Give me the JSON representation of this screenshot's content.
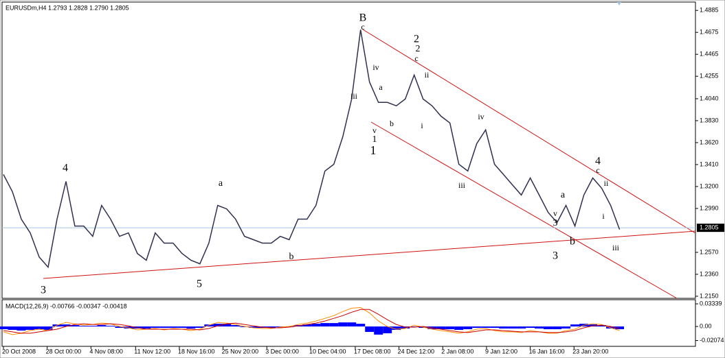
{
  "chart_data": [
    {
      "type": "line",
      "header": "EURUSDm,H4  1.2793 1.2828 1.2790 1.2805",
      "color": "#2f2f4f",
      "x": [
        0,
        1,
        2,
        3,
        4,
        5,
        6,
        7,
        8,
        9,
        10,
        11,
        12,
        13,
        14,
        15,
        16,
        17,
        18,
        19,
        20,
        21,
        22,
        23,
        24,
        25,
        26,
        27,
        28,
        29,
        30,
        31,
        32,
        33,
        34,
        35,
        36,
        37,
        38,
        39,
        40,
        41,
        42,
        43,
        44,
        45,
        46,
        47,
        48,
        49,
        50,
        51,
        52,
        53,
        54,
        55,
        56,
        57,
        58,
        59,
        60,
        61,
        62,
        63,
        64,
        65,
        66,
        67,
        68,
        69
      ],
      "values": [
        1.3315,
        1.3151,
        1.2888,
        1.2756,
        1.2526,
        1.2428,
        1.2888,
        1.3249,
        1.2822,
        1.2822,
        1.2723,
        1.3019,
        1.2888,
        1.2723,
        1.2756,
        1.2559,
        1.2494,
        1.2756,
        1.2658,
        1.2658,
        1.2559,
        1.2494,
        1.2461,
        1.2658,
        1.3019,
        1.2986,
        1.2888,
        1.2723,
        1.2691,
        1.2658,
        1.2658,
        1.2723,
        1.2691,
        1.2888,
        1.2888,
        1.3019,
        1.3348,
        1.3413,
        1.3676,
        1.4037,
        1.47,
        1.42,
        1.4005,
        1.4005,
        1.3972,
        1.4037,
        1.4267,
        1.4037,
        1.3972,
        1.3873,
        1.3808,
        1.3413,
        1.3348,
        1.361,
        1.3742,
        1.3413,
        1.3315,
        1.3216,
        1.3118,
        1.3282,
        1.3118,
        1.2953,
        1.2855,
        1.3019,
        1.2822,
        1.3118,
        1.3282,
        1.3183,
        1.3019,
        1.2789
      ],
      "xlim": [
        0,
        77.5
      ],
      "ylim": [
        1.213,
        1.4965
      ],
      "yticks": [
        1.4885,
        1.4675,
        1.4465,
        1.4255,
        {
          "value": 1.404,
          "label": "1.4040"
        },
        {
          "value": 1.383,
          "label": "1.3830"
        },
        {
          "value": 1.362,
          "label": "1.3620"
        },
        {
          "value": 1.341,
          "label": "1.3410"
        },
        {
          "value": 1.32,
          "label": "1.3200"
        },
        {
          "value": 1.299,
          "label": "1.2990"
        },
        {
          "value": 1.257,
          "label": "1.2570"
        },
        {
          "value": 1.236,
          "label": "1.2360"
        },
        {
          "value": 1.215,
          "label": "1.2150"
        }
      ],
      "last_price": {
        "value": 1.2805,
        "label": "1.2805"
      },
      "xticks": [
        {
          "value": 0,
          "label": "20 Oct 2008"
        },
        {
          "value": 4.9,
          "label": "28 Oct 00:00"
        },
        {
          "value": 9.8,
          "label": "4 Nov 08:00"
        },
        {
          "value": 14.8,
          "label": "11 Nov 12:00"
        },
        {
          "value": 19.7,
          "label": "18 Nov 16:00"
        },
        {
          "value": 24.6,
          "label": "25 Nov 20:00"
        },
        {
          "value": 29.5,
          "label": "3 Dec 00:00"
        },
        {
          "value": 34.4,
          "label": "10 Dec 04:00"
        },
        {
          "value": 39.4,
          "label": "17 Dec 08:00"
        },
        {
          "value": 44.3,
          "label": "24 Dec 12:00"
        },
        {
          "value": 49.2,
          "label": "2 Jan 08:00"
        },
        {
          "value": 54.1,
          "label": "9 Jan 12:00"
        },
        {
          "value": 59,
          "label": "16 Jan 16:00"
        },
        {
          "value": 63.9,
          "label": "23 Jan 20:00"
        }
      ],
      "annotations": [
        "B",
        "c",
        "2",
        "2",
        "c",
        "iv",
        "a",
        "ii",
        "iii",
        "i",
        "b",
        "v",
        "1",
        "1",
        "iv",
        "iii",
        "a",
        "4",
        "3",
        "5",
        "b",
        "a",
        "v",
        "3",
        "3",
        "b",
        "4",
        "c",
        "ii",
        "i",
        "iii"
      ]
    },
    {
      "type": "macd",
      "title": "MACD(12,26,9) -0.00766 -0.00347 -0.00418",
      "ylim": [
        -0.0293,
        0.0395
      ],
      "yticks": [
        0.03339,
        {
          "value": 0,
          "label": "0.00"
        },
        -0.02074
      ],
      "series": [
        {
          "type": "bar",
          "color": "#0000ff",
          "values": [
            -0.004,
            -0.005,
            -0.006,
            -0.005,
            -0.004,
            -0.005,
            0.003,
            0.003,
            0.002,
            0.001,
            0.001,
            0.002,
            0.001,
            -0.002,
            -0.003,
            -0.003,
            -0.003,
            -0.002,
            -0.002,
            -0.002,
            -0.002,
            -0.003,
            -0.002,
            0.003,
            0.004,
            0.004,
            0.002,
            -0.001,
            -0.002,
            -0.002,
            -0.002,
            -0.001,
            -0.001,
            0.002,
            0.003,
            0.004,
            0.005,
            0.005,
            0.006,
            0.006,
            0.004,
            -0.008,
            -0.012,
            -0.01,
            -0.005,
            -0.003,
            -0.001,
            -0.002,
            -0.004,
            -0.004,
            -0.004,
            -0.005,
            -0.004,
            -0.002,
            -0.002,
            -0.002,
            -0.003,
            -0.003,
            -0.003,
            -0.002,
            -0.003,
            -0.004,
            -0.004,
            -0.003,
            0.003,
            0.004,
            0.003,
            0.002,
            -0.003,
            -0.004
          ]
        },
        {
          "type": "line",
          "color": "#ff8c00",
          "values": [
            -0.008,
            -0.012,
            -0.01,
            -0.006,
            -0.004,
            -0.006,
            0.002,
            0.006,
            0.004,
            0.002,
            0.003,
            0.005,
            0.004,
            0,
            -0.002,
            -0.005,
            -0.004,
            -0.003,
            -0.005,
            -0.003,
            -0.004,
            -0.006,
            -0.004,
            0.002,
            0.006,
            0.005,
            0.003,
            0,
            -0.002,
            -0.003,
            -0.003,
            -0.001,
            0,
            0.003,
            0.005,
            0.008,
            0.012,
            0.016,
            0.022,
            0.027,
            0.028,
            0.02,
            0.008,
            0,
            -0.004,
            -0.003,
            0.002,
            -0.001,
            -0.004,
            -0.006,
            -0.008,
            -0.01,
            -0.008,
            -0.004,
            -0.003,
            -0.006,
            -0.008,
            -0.008,
            -0.009,
            -0.006,
            -0.008,
            -0.01,
            -0.01,
            -0.006,
            -0.004,
            0.002,
            0.004,
            0.003,
            -0.002,
            -0.006
          ]
        },
        {
          "type": "line",
          "color": "#cc0000",
          "values": [
            -0.006,
            -0.008,
            -0.01,
            -0.01,
            -0.008,
            -0.006,
            -0.004,
            0,
            0.003,
            0.004,
            0.003,
            0.003,
            0.004,
            0.003,
            0.001,
            -0.002,
            -0.004,
            -0.004,
            -0.004,
            -0.004,
            -0.004,
            -0.004,
            -0.005,
            -0.003,
            0.001,
            0.004,
            0.005,
            0.003,
            0.001,
            -0.001,
            -0.002,
            -0.002,
            -0.001,
            0.001,
            0.003,
            0.005,
            0.008,
            0.012,
            0.016,
            0.021,
            0.025,
            0.025,
            0.018,
            0.01,
            0.003,
            -0.001,
            -0.001,
            0,
            -0.002,
            -0.004,
            -0.006,
            -0.008,
            -0.009,
            -0.007,
            -0.005,
            -0.005,
            -0.006,
            -0.007,
            -0.008,
            -0.008,
            -0.008,
            -0.009,
            -0.009,
            -0.008,
            -0.006,
            -0.002,
            0.001,
            0.002,
            0,
            -0.003
          ]
        }
      ]
    }
  ]
}
